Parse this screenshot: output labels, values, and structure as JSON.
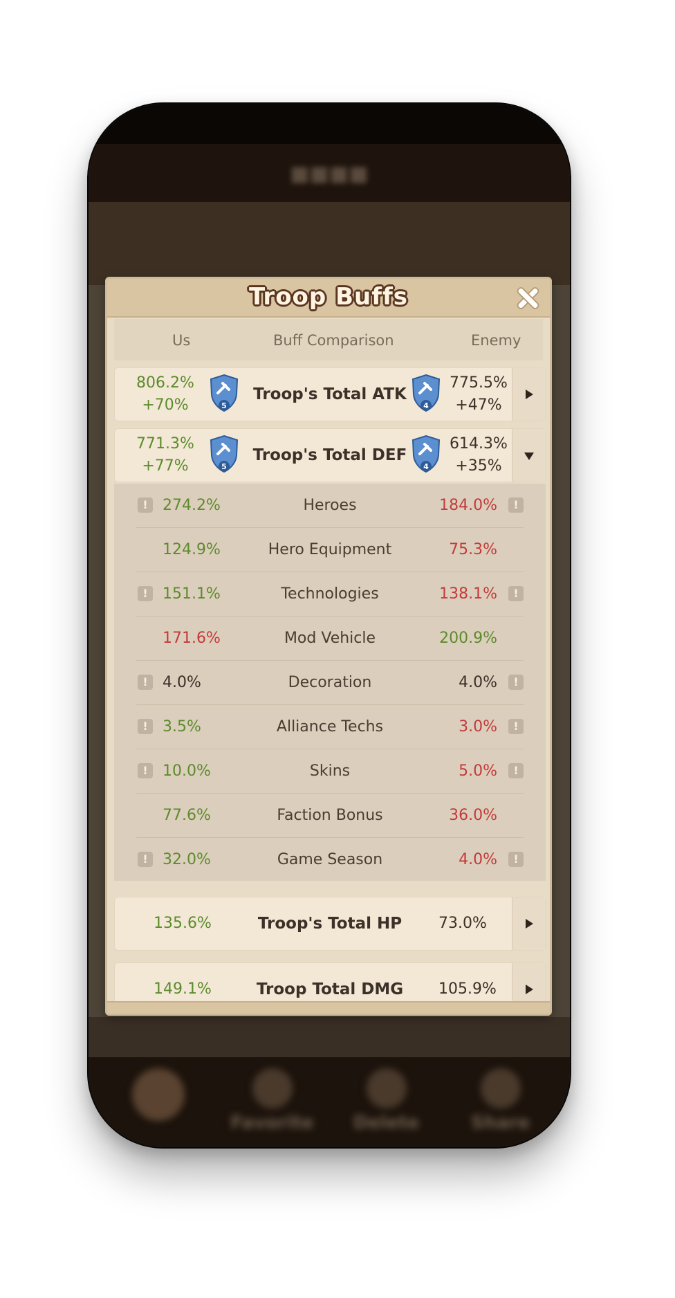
{
  "modal": {
    "title": "Troop Buffs",
    "columns": {
      "us": "Us",
      "comparison": "Buff Comparison",
      "enemy": "Enemy"
    }
  },
  "summary": [
    {
      "label": "Troop's Total ATK",
      "us_total": "806.2%",
      "us_diff": "+70%",
      "us_rank": "5",
      "enemy_total": "775.5%",
      "enemy_diff": "+47%",
      "enemy_rank": "4",
      "state": "collapsed"
    },
    {
      "label": "Troop's Total DEF",
      "us_total": "771.3%",
      "us_diff": "+77%",
      "us_rank": "5",
      "enemy_total": "614.3%",
      "enemy_diff": "+35%",
      "enemy_rank": "4",
      "state": "expanded"
    }
  ],
  "def_breakdown": [
    {
      "label": "Heroes",
      "us": "274.2%",
      "enemy": "184.0%",
      "info": true,
      "us_color": "green",
      "enemy_color": "red"
    },
    {
      "label": "Hero Equipment",
      "us": "124.9%",
      "enemy": "75.3%",
      "info": false,
      "us_color": "green",
      "enemy_color": "red"
    },
    {
      "label": "Technologies",
      "us": "151.1%",
      "enemy": "138.1%",
      "info": true,
      "us_color": "green",
      "enemy_color": "red"
    },
    {
      "label": "Mod Vehicle",
      "us": "171.6%",
      "enemy": "200.9%",
      "info": false,
      "us_color": "red",
      "enemy_color": "green"
    },
    {
      "label": "Decoration",
      "us": "4.0%",
      "enemy": "4.0%",
      "info": true,
      "us_color": "dark",
      "enemy_color": "dark"
    },
    {
      "label": "Alliance Techs",
      "us": "3.5%",
      "enemy": "3.0%",
      "info": true,
      "us_color": "green",
      "enemy_color": "red"
    },
    {
      "label": "Skins",
      "us": "10.0%",
      "enemy": "5.0%",
      "info": true,
      "us_color": "green",
      "enemy_color": "red"
    },
    {
      "label": "Faction Bonus",
      "us": "77.6%",
      "enemy": "36.0%",
      "info": false,
      "us_color": "green",
      "enemy_color": "red"
    },
    {
      "label": "Game Season",
      "us": "32.0%",
      "enemy": "4.0%",
      "info": true,
      "us_color": "green",
      "enemy_color": "red"
    }
  ],
  "hp": {
    "label": "Troop's Total HP",
    "us": "135.6%",
    "enemy": "73.0%"
  },
  "dmg": {
    "label": "Troop Total DMG",
    "us": "149.1%",
    "enemy": "105.9%"
  },
  "background": {
    "bottom_nav": [
      "Favorite",
      "Delete",
      "Share"
    ]
  },
  "colors": {
    "green": "#5c8b2c",
    "red": "#c23b3b",
    "shield": "#5b8fd0",
    "panel": "#e9dcc6"
  }
}
